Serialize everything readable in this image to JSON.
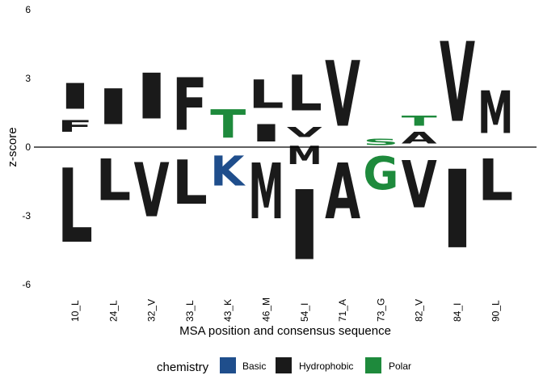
{
  "chart_data": {
    "type": "sequence-logo",
    "xlabel": "MSA position and consensus sequence",
    "ylabel": "z-score",
    "ylim": [
      -6,
      6
    ],
    "yticks": [
      -6,
      -3,
      0,
      3,
      6
    ],
    "grid": false,
    "legend": {
      "title": "chemistry",
      "position": "bottom",
      "entries": [
        {
          "name": "Basic",
          "color": "#1f4e8c"
        },
        {
          "name": "Hydrophobic",
          "color": "#1a1a1a"
        },
        {
          "name": "Polar",
          "color": "#1e8a3c"
        }
      ]
    },
    "categories": [
      "10_L",
      "24_L",
      "32_V",
      "33_L",
      "43_K",
      "46_M",
      "54_I",
      "71_A",
      "73_G",
      "82_V",
      "84_I",
      "90_L"
    ],
    "stacks": [
      {
        "position": "10_L",
        "letters": [
          {
            "letter": "I",
            "bottom": 1.3,
            "top": 3.1,
            "chemistry": "Hydrophobic"
          },
          {
            "letter": "F",
            "bottom": 0.5,
            "top": 1.3,
            "chemistry": "Hydrophobic"
          },
          {
            "letter": "L",
            "bottom": -5.2,
            "top": 0,
            "chemistry": "Hydrophobic"
          }
        ]
      },
      {
        "position": "24_L",
        "letters": [
          {
            "letter": "I",
            "bottom": 0.5,
            "top": 3.0,
            "chemistry": "Hydrophobic"
          },
          {
            "letter": "L",
            "bottom": -2.9,
            "top": 0,
            "chemistry": "Hydrophobic"
          }
        ]
      },
      {
        "position": "32_V",
        "letters": [
          {
            "letter": "I",
            "bottom": 0.6,
            "top": 3.8,
            "chemistry": "Hydrophobic"
          },
          {
            "letter": "V",
            "bottom": -3.8,
            "top": 0,
            "chemistry": "Hydrophobic"
          }
        ]
      },
      {
        "position": "33_L",
        "letters": [
          {
            "letter": "F",
            "bottom": 0,
            "top": 3.7,
            "chemistry": "Hydrophobic"
          },
          {
            "letter": "L",
            "bottom": -3.1,
            "top": 0,
            "chemistry": "Hydrophobic"
          }
        ]
      },
      {
        "position": "43_K",
        "letters": [
          {
            "letter": "T",
            "bottom": 0,
            "top": 2.0,
            "chemistry": "Polar"
          },
          {
            "letter": "K",
            "bottom": -2.1,
            "top": 0,
            "chemistry": "Basic"
          }
        ]
      },
      {
        "position": "46_M",
        "letters": [
          {
            "letter": "L",
            "bottom": 1.3,
            "top": 3.3,
            "chemistry": "Hydrophobic"
          },
          {
            "letter": "I",
            "bottom": 0,
            "top": 1.2,
            "chemistry": "Hydrophobic"
          },
          {
            "letter": "M",
            "bottom": -3.9,
            "top": 0,
            "chemistry": "Hydrophobic"
          }
        ]
      },
      {
        "position": "54_I",
        "letters": [
          {
            "letter": "L",
            "bottom": 1.1,
            "top": 3.6,
            "chemistry": "Hydrophobic"
          },
          {
            "letter": "V",
            "bottom": 0.3,
            "top": 1.0,
            "chemistry": "Hydrophobic"
          },
          {
            "letter": "M",
            "bottom": -1.0,
            "top": 0.3,
            "chemistry": "Hydrophobic"
          },
          {
            "letter": "I",
            "bottom": -5.9,
            "top": -1.0,
            "chemistry": "Hydrophobic"
          }
        ]
      },
      {
        "position": "71_A",
        "letters": [
          {
            "letter": "V",
            "bottom": 0,
            "top": 4.6,
            "chemistry": "Hydrophobic"
          },
          {
            "letter": "A",
            "bottom": -3.9,
            "top": 0,
            "chemistry": "Hydrophobic"
          }
        ]
      },
      {
        "position": "73_G",
        "letters": [
          {
            "letter": "S",
            "bottom": 0,
            "top": 0.45,
            "chemistry": "Polar"
          },
          {
            "letter": "G",
            "bottom": -2.3,
            "top": 0,
            "chemistry": "Polar"
          }
        ]
      },
      {
        "position": "82_V",
        "letters": [
          {
            "letter": "T",
            "bottom": 0.8,
            "top": 1.5,
            "chemistry": "Polar"
          },
          {
            "letter": "A",
            "bottom": 0,
            "top": 0.8,
            "chemistry": "Hydrophobic"
          },
          {
            "letter": "V",
            "bottom": -3.3,
            "top": 0,
            "chemistry": "Hydrophobic"
          }
        ]
      },
      {
        "position": "84_I",
        "letters": [
          {
            "letter": "V",
            "bottom": 0,
            "top": 5.6,
            "chemistry": "Hydrophobic"
          },
          {
            "letter": "I",
            "bottom": -5.5,
            "top": 0,
            "chemistry": "Hydrophobic"
          }
        ]
      },
      {
        "position": "90_L",
        "letters": [
          {
            "letter": "M",
            "bottom": 0,
            "top": 3.0,
            "chemistry": "Hydrophobic"
          },
          {
            "letter": "L",
            "bottom": -2.9,
            "top": 0,
            "chemistry": "Hydrophobic"
          }
        ]
      }
    ]
  }
}
